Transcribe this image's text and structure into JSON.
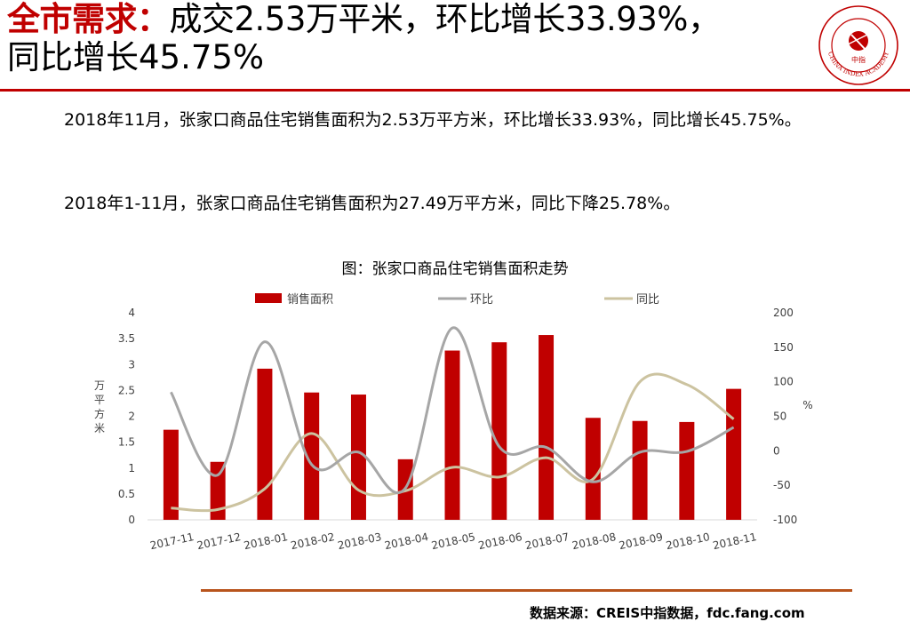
{
  "header": {
    "highlight": "全市需求：",
    "line1_rest": "成交2.53万平米，环比增长33.93%，",
    "line2": "同比增长45.75%"
  },
  "seal": {
    "center_text": "中指",
    "ring_text": "CHINA INDEX ACADEMY",
    "brand_color": "#c00000"
  },
  "paragraphs": [
    "2018年11月，张家口商品住宅销售面积为2.53万平方米，环比增长33.93%，同比增长45.75%。",
    "2018年1-11月，张家口商品住宅销售面积为27.49万平方米，同比下降25.78%。"
  ],
  "chart_title": "图：张家口商品住宅销售面积走势",
  "source": "数据来源：CREIS中指数据，fdc.fang.com",
  "chart_data": {
    "type": "bar",
    "categories": [
      "2017-11",
      "2017-12",
      "2018-01",
      "2018-02",
      "2018-03",
      "2018-04",
      "2018-05",
      "2018-06",
      "2018-07",
      "2018-08",
      "2018-09",
      "2018-10",
      "2018-11"
    ],
    "series": [
      {
        "name": "销售面积",
        "type": "bar",
        "axis": "left",
        "color": "#c00000",
        "values": [
          1.74,
          1.12,
          2.92,
          2.46,
          2.42,
          1.17,
          3.27,
          3.43,
          3.57,
          1.97,
          1.91,
          1.89,
          2.53
        ]
      },
      {
        "name": "环比",
        "type": "line",
        "axis": "right",
        "color": "#a6a6a6",
        "values": [
          85,
          -35,
          158,
          -20,
          -2,
          -54,
          178,
          6,
          5,
          -45,
          -2,
          -1,
          34
        ]
      },
      {
        "name": "同比",
        "type": "line",
        "axis": "right",
        "color": "#ccc3a0",
        "values": [
          -83,
          -85,
          -55,
          25,
          -57,
          -58,
          -24,
          -38,
          -10,
          -41,
          100,
          96,
          46
        ]
      }
    ],
    "ylabel": "万平方米",
    "y2label": "%",
    "ylim": [
      0,
      4
    ],
    "yticks": [
      "0",
      "0.5",
      "1",
      "1.5",
      "2",
      "2.5",
      "3",
      "3.5",
      "4"
    ],
    "y2lim": [
      -100,
      200
    ],
    "y2ticks": [
      "-100",
      "-50",
      "0",
      "50",
      "100",
      "150",
      "200"
    ],
    "legend_position": "top",
    "grid": false
  }
}
